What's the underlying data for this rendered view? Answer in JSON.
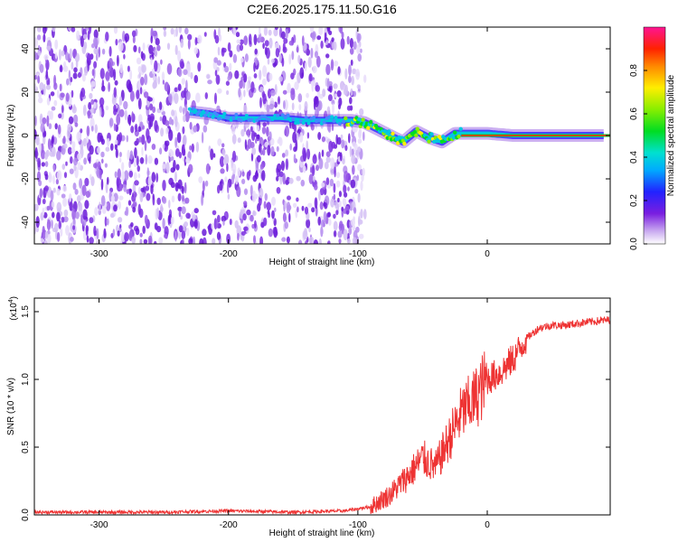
{
  "title": "C2E6.2025.175.11.50.G16",
  "chart_data": [
    {
      "type": "heatmap",
      "xlabel": "Height of straight line (km)",
      "ylabel": "Frequency (Hz)",
      "xlim": [
        -350,
        95
      ],
      "ylim": [
        -50,
        50
      ],
      "x_ticks": [
        -300,
        -200,
        -100,
        0
      ],
      "x_tick_labels": [
        "-300",
        "-200",
        "-100",
        "0"
      ],
      "y_ticks": [
        -40,
        -20,
        0,
        20,
        40
      ],
      "y_tick_labels": [
        "-40",
        "-20",
        "0",
        "20",
        "40"
      ],
      "colorbar": {
        "label": "Normalized spectral amplitude",
        "range": [
          0,
          1
        ],
        "ticks": [
          0.0,
          0.2,
          0.4,
          0.6,
          0.8
        ],
        "tick_labels": [
          "0.0",
          "0.2",
          "0.4",
          "0.6",
          "0.8"
        ],
        "colormap": "rainbow"
      },
      "ridge": [
        {
          "x": -230,
          "y": 11
        },
        {
          "x": -215,
          "y": 10
        },
        {
          "x": -200,
          "y": 8
        },
        {
          "x": -180,
          "y": 8
        },
        {
          "x": -160,
          "y": 8
        },
        {
          "x": -140,
          "y": 7
        },
        {
          "x": -120,
          "y": 7
        },
        {
          "x": -105,
          "y": 7
        },
        {
          "x": -95,
          "y": 6
        },
        {
          "x": -85,
          "y": 3
        },
        {
          "x": -75,
          "y": 0
        },
        {
          "x": -65,
          "y": -3
        },
        {
          "x": -55,
          "y": 2
        },
        {
          "x": -45,
          "y": -1
        },
        {
          "x": -35,
          "y": -3
        },
        {
          "x": -25,
          "y": 1
        },
        {
          "x": -10,
          "y": 1
        },
        {
          "x": 0,
          "y": 1
        },
        {
          "x": 20,
          "y": 0
        },
        {
          "x": 50,
          "y": 0
        },
        {
          "x": 90,
          "y": 0
        }
      ]
    },
    {
      "type": "line",
      "xlabel": "Height of straight line (km)",
      "ylabel": "SNR (10 * v/v)",
      "y_scale_note": "(x10",
      "y_scale_exp": "4",
      "xlim": [
        -350,
        95
      ],
      "ylim": [
        0,
        1.6
      ],
      "x_ticks": [
        -300,
        -200,
        -100,
        0
      ],
      "x_tick_labels": [
        "-300",
        "-200",
        "-100",
        "0"
      ],
      "y_ticks": [
        0.0,
        0.5,
        1.0,
        1.5
      ],
      "y_tick_labels": [
        "0.0",
        "0.5",
        "1.0",
        "1.5"
      ],
      "series_color": "#ee3333",
      "x": [
        -350,
        -300,
        -250,
        -200,
        -150,
        -110,
        -90,
        -75,
        -60,
        -50,
        -40,
        -30,
        -20,
        -10,
        0,
        10,
        20,
        30,
        40,
        50,
        60,
        75,
        95
      ],
      "values": [
        0.02,
        0.02,
        0.02,
        0.03,
        0.02,
        0.03,
        0.06,
        0.15,
        0.3,
        0.42,
        0.35,
        0.55,
        0.75,
        0.85,
        1.0,
        1.05,
        1.15,
        1.3,
        1.38,
        1.4,
        1.4,
        1.42,
        1.44
      ]
    }
  ]
}
